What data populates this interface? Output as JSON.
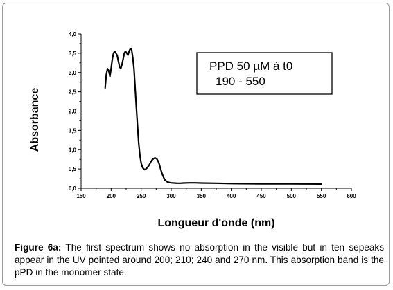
{
  "chart_data": {
    "type": "line",
    "xlabel": "Longueur d'onde (nm)",
    "ylabel": "Absorbance",
    "xlim": [
      150,
      600
    ],
    "ylim": [
      0,
      4.0
    ],
    "xticks": [
      "150",
      "200",
      "250",
      "300",
      "350",
      "400",
      "450",
      "500",
      "550",
      "600"
    ],
    "yticks": [
      "0,0",
      "0,5",
      "1,0",
      "1,5",
      "2,0",
      "2,5",
      "3,0",
      "3,5",
      "4,0"
    ],
    "legend_placement": "top-right",
    "legend": [
      "PPD 50 µM à t0",
      "190 - 550"
    ],
    "series": [
      {
        "x": [
          190,
          192,
          194,
          196,
          198,
          200,
          202,
          204,
          206,
          208,
          210,
          212,
          214,
          216,
          218,
          220,
          222,
          224,
          226,
          228,
          230,
          232,
          234,
          236,
          238,
          240,
          242,
          244,
          246,
          248,
          250,
          252,
          254,
          256,
          258,
          260,
          262,
          264,
          266,
          268,
          270,
          272,
          274,
          276,
          278,
          280,
          282,
          284,
          286,
          288,
          290,
          293,
          296,
          300,
          305,
          310,
          315,
          320,
          330,
          340,
          350,
          375,
          400,
          450,
          500,
          550
        ],
        "y": [
          2.6,
          2.95,
          3.1,
          3.05,
          2.9,
          3.1,
          3.35,
          3.5,
          3.55,
          3.5,
          3.45,
          3.3,
          3.15,
          3.1,
          3.2,
          3.35,
          3.5,
          3.55,
          3.5,
          3.45,
          3.55,
          3.62,
          3.6,
          3.4,
          3.1,
          2.6,
          2.1,
          1.6,
          1.15,
          0.85,
          0.65,
          0.55,
          0.5,
          0.48,
          0.5,
          0.53,
          0.57,
          0.62,
          0.68,
          0.73,
          0.76,
          0.78,
          0.78,
          0.76,
          0.71,
          0.63,
          0.52,
          0.42,
          0.33,
          0.26,
          0.21,
          0.17,
          0.15,
          0.14,
          0.135,
          0.13,
          0.13,
          0.135,
          0.14,
          0.14,
          0.135,
          0.13,
          0.12,
          0.115,
          0.115,
          0.11
        ]
      }
    ]
  },
  "caption": {
    "label": "Figure 6a:",
    "text": " The first spectrum shows no absorption in the visible but in ten sepeaks appear in the UV pointed around 200; 210; 240 and 270 nm. This absorption band is the pPD in the monomer state."
  },
  "colors": {
    "line": "#000000",
    "frame": "#9a9a9a"
  }
}
